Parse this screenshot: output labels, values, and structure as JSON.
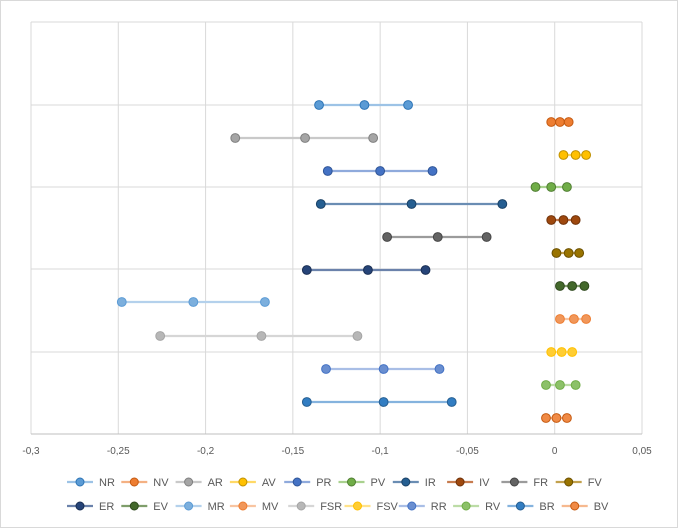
{
  "chart_data": {
    "type": "scatter",
    "title": "",
    "xlabel": "",
    "ylabel": "",
    "xlim": [
      -0.3,
      0.05
    ],
    "ylim": [
      0,
      20
    ],
    "grid": true,
    "legend_position": "bottom",
    "x_tick_values": [
      -0.3,
      -0.25,
      -0.2,
      -0.15,
      -0.1,
      -0.05,
      0,
      0.05
    ],
    "x_tick_labels": [
      "-0,3",
      "-0,25",
      "-0,2",
      "-0,15",
      "-0,1",
      "-0,05",
      "0",
      "0,05"
    ],
    "y_grid_values": [
      0,
      4,
      8,
      12,
      16,
      20
    ],
    "series": [
      {
        "name": "NR",
        "color": "#5b9bd5",
        "line": "#9dc3e6",
        "dark": "#2e75b6",
        "y": 16,
        "x": [
          -0.135,
          -0.109,
          -0.084
        ]
      },
      {
        "name": "NV",
        "color": "#ed7d31",
        "line": "#f4b183",
        "dark": "#c55a11",
        "y": 15,
        "x": [
          -0.002,
          0.003,
          0.008
        ]
      },
      {
        "name": "AR",
        "color": "#a5a5a5",
        "line": "#c9c9c9",
        "dark": "#7f7f7f",
        "y": 14,
        "x": [
          -0.183,
          -0.143,
          -0.104
        ]
      },
      {
        "name": "AV",
        "color": "#ffc000",
        "line": "#ffd966",
        "dark": "#bf9000",
        "y": 13,
        "x": [
          0.005,
          0.012,
          0.018
        ]
      },
      {
        "name": "PR",
        "color": "#4472c4",
        "line": "#8faadc",
        "dark": "#2f5597",
        "y": 12,
        "x": [
          -0.13,
          -0.1,
          -0.07
        ]
      },
      {
        "name": "PV",
        "color": "#70ad47",
        "line": "#a9d18e",
        "dark": "#507e32",
        "y": 11,
        "x": [
          -0.011,
          -0.002,
          0.007
        ]
      },
      {
        "name": "IR",
        "color": "#255e91",
        "line": "#6a8db3",
        "dark": "#1a4166",
        "y": 10,
        "x": [
          -0.134,
          -0.082,
          -0.03
        ]
      },
      {
        "name": "IV",
        "color": "#9e480e",
        "line": "#c77c4f",
        "dark": "#6f3209",
        "y": 9,
        "x": [
          -0.002,
          0.005,
          0.012
        ]
      },
      {
        "name": "FR",
        "color": "#636363",
        "line": "#9b9b9b",
        "dark": "#454545",
        "y": 8,
        "x": [
          -0.096,
          -0.067,
          -0.039
        ]
      },
      {
        "name": "FV",
        "color": "#997300",
        "line": "#c2a14d",
        "dark": "#6b5000",
        "y": 7,
        "x": [
          0.001,
          0.008,
          0.014
        ]
      },
      {
        "name": "ER",
        "color": "#264478",
        "line": "#6b82ab",
        "dark": "#1a2f54",
        "y": 6,
        "x": [
          -0.142,
          -0.107,
          -0.074
        ]
      },
      {
        "name": "EV",
        "color": "#43682b",
        "line": "#7f9e6b",
        "dark": "#2f491e",
        "y": 5,
        "x": [
          0.003,
          0.01,
          0.017
        ]
      },
      {
        "name": "MR",
        "color": "#7cafdd",
        "line": "#b4d1ec",
        "dark": "#5b9bd5",
        "y": 4,
        "x": [
          -0.248,
          -0.207,
          -0.166
        ]
      },
      {
        "name": "MV",
        "color": "#f1975a",
        "line": "#f8c4a1",
        "dark": "#ed7d31",
        "y": 3,
        "x": [
          0.003,
          0.011,
          0.018
        ]
      },
      {
        "name": "FSR",
        "color": "#b7b7b7",
        "line": "#d6d6d6",
        "dark": "#a5a5a5",
        "y": 2,
        "x": [
          -0.226,
          -0.168,
          -0.113
        ]
      },
      {
        "name": "FSV",
        "color": "#ffcd33",
        "line": "#ffe28a",
        "dark": "#ffc000",
        "y": 1,
        "x": [
          -0.002,
          0.004,
          0.01
        ]
      },
      {
        "name": "RR",
        "color": "#698ed0",
        "line": "#a9bee6",
        "dark": "#4472c4",
        "y": 0,
        "x": [
          -0.131,
          -0.098,
          -0.066
        ]
      },
      {
        "name": "RV",
        "color": "#8cc168",
        "line": "#bcdca6",
        "dark": "#70ad47",
        "y": -1,
        "x": [
          -0.005,
          0.003,
          0.012
        ]
      },
      {
        "name": "BR",
        "color": "#327dc2",
        "line": "#85b3de",
        "dark": "#255e91",
        "y": -2,
        "x": [
          -0.142,
          -0.098,
          -0.059
        ]
      },
      {
        "name": "BV",
        "color": "#f08a45",
        "line": "#f6b98f",
        "dark": "#c55a11",
        "y": -3,
        "x": [
          -0.005,
          0.001,
          0.007
        ]
      }
    ]
  }
}
